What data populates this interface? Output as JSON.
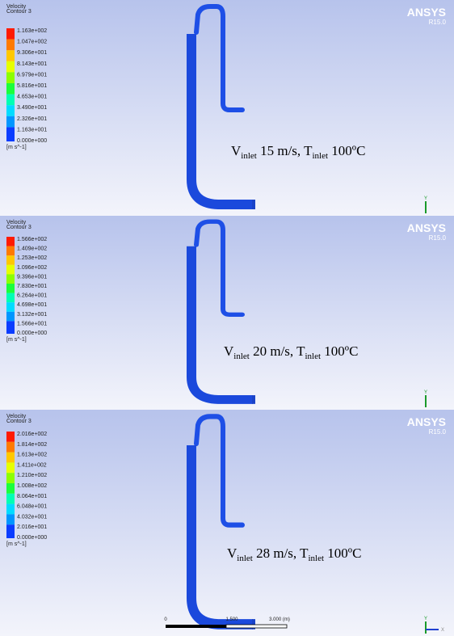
{
  "panels": [
    {
      "legend_title": [
        "Velocity",
        "Contour 3"
      ],
      "legend_labels": [
        "1.163e+002",
        "1.047e+002",
        "9.306e+001",
        "8.143e+001",
        "6.979e+001",
        "5.816e+001",
        "4.653e+001",
        "3.490e+001",
        "2.326e+001",
        "1.163e+001",
        "0.000e+000"
      ],
      "unit": "[m s^-1]",
      "logo": "ANSYS",
      "version": "R15.0",
      "caption": [
        "V",
        "inlet",
        " 15 m/s, T",
        "inlet",
        " 100ºC"
      ],
      "triad": [
        "Y"
      ]
    },
    {
      "legend_title": [
        "Velocity",
        "Contour 3"
      ],
      "legend_labels": [
        "1.566e+002",
        "1.409e+002",
        "1.253e+002",
        "1.096e+002",
        "9.396e+001",
        "7.830e+001",
        "6.264e+001",
        "4.698e+001",
        "3.132e+001",
        "1.566e+001",
        "0.000e+000"
      ],
      "unit": "[m s^-1]",
      "logo": "ANSYS",
      "version": "R15.0",
      "caption": [
        "V",
        "inlet",
        " 20 m/s, T",
        "inlet",
        " 100ºC"
      ],
      "triad": [
        "Y"
      ]
    },
    {
      "legend_title": [
        "Velocity",
        "Contour 3"
      ],
      "legend_labels": [
        "2.016e+002",
        "1.814e+002",
        "1.613e+002",
        "1.411e+002",
        "1.210e+002",
        "1.008e+002",
        "8.064e+001",
        "6.048e+001",
        "4.032e+001",
        "2.016e+001",
        "0.000e+000"
      ],
      "unit": "[m s^-1]",
      "logo": "ANSYS",
      "version": "R15.0",
      "caption": [
        "V",
        "inlet",
        " 28  m/s, T",
        "inlet",
        " 100ºC"
      ],
      "triad": [
        "Y",
        "X"
      ],
      "scale_bar": [
        "0",
        "1.500",
        "3.000 (m)"
      ]
    }
  ]
}
